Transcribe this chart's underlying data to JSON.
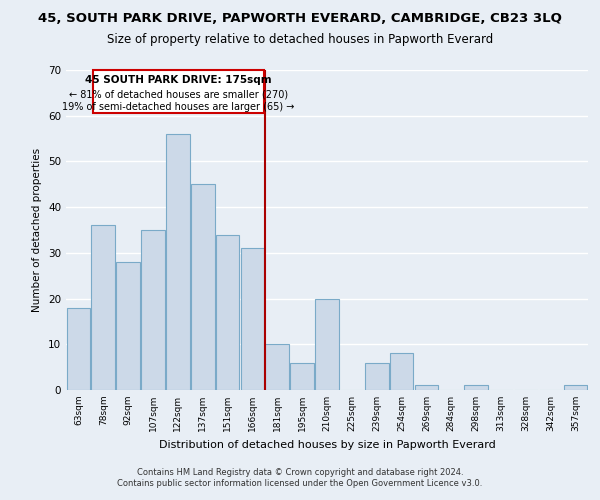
{
  "title": "45, SOUTH PARK DRIVE, PAPWORTH EVERARD, CAMBRIDGE, CB23 3LQ",
  "subtitle": "Size of property relative to detached houses in Papworth Everard",
  "xlabel": "Distribution of detached houses by size in Papworth Everard",
  "ylabel": "Number of detached properties",
  "categories": [
    "63sqm",
    "78sqm",
    "92sqm",
    "107sqm",
    "122sqm",
    "137sqm",
    "151sqm",
    "166sqm",
    "181sqm",
    "195sqm",
    "210sqm",
    "225sqm",
    "239sqm",
    "254sqm",
    "269sqm",
    "284sqm",
    "298sqm",
    "313sqm",
    "328sqm",
    "342sqm",
    "357sqm"
  ],
  "values": [
    18,
    36,
    28,
    35,
    56,
    45,
    34,
    31,
    10,
    6,
    20,
    0,
    6,
    8,
    1,
    0,
    1,
    0,
    0,
    0,
    1
  ],
  "bar_color": "#ccd9e8",
  "bar_edge_color": "#7aaac8",
  "vline_x": 7.5,
  "vline_color": "#aa0000",
  "ylim": [
    0,
    70
  ],
  "yticks": [
    0,
    10,
    20,
    30,
    40,
    50,
    60,
    70
  ],
  "annotation_title": "45 SOUTH PARK DRIVE: 175sqm",
  "annotation_line1": "← 81% of detached houses are smaller (270)",
  "annotation_line2": "19% of semi-detached houses are larger (65) →",
  "annotation_box_color": "#ffffff",
  "annotation_box_edge": "#cc0000",
  "footer1": "Contains HM Land Registry data © Crown copyright and database right 2024.",
  "footer2": "Contains public sector information licensed under the Open Government Licence v3.0.",
  "background_color": "#e8eef5",
  "grid_color": "#ffffff",
  "title_fontsize": 9.5,
  "subtitle_fontsize": 8.5
}
